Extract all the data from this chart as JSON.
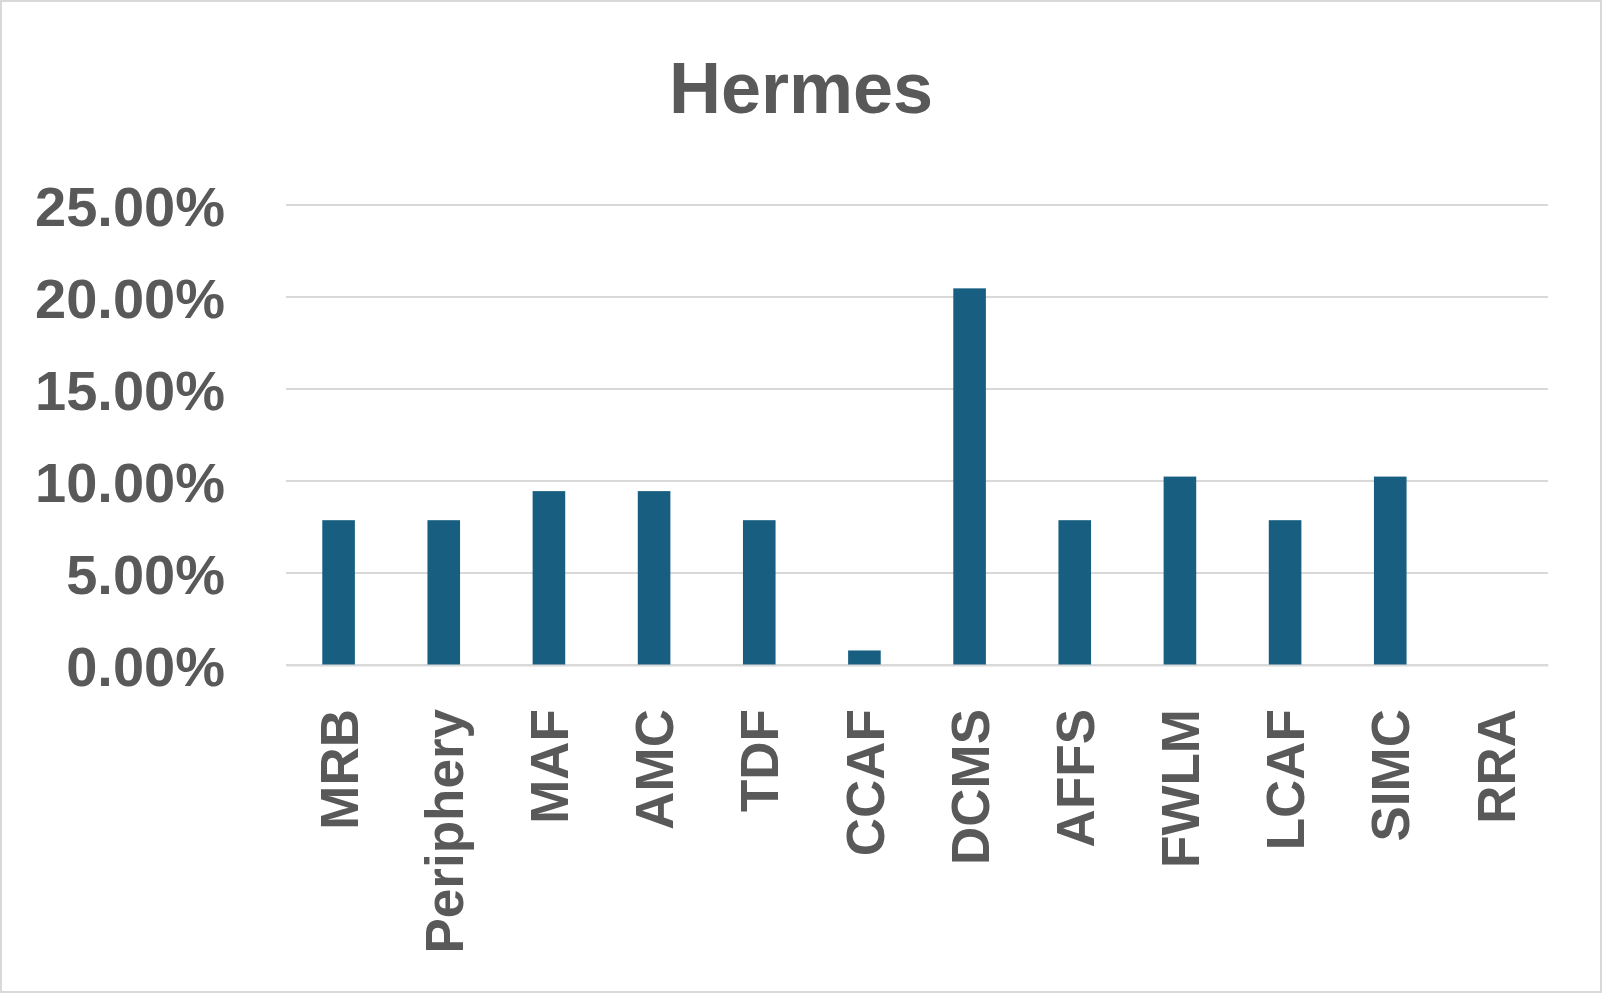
{
  "chart_data": {
    "type": "bar",
    "title": "Hermes",
    "categories": [
      "MRB",
      "Periphery",
      "MAF",
      "AMC",
      "TDF",
      "CCAF",
      "DCMS",
      "AFFS",
      "FWLM",
      "LCAF",
      "SIMC",
      "RRA"
    ],
    "values": [
      7.87,
      7.87,
      9.45,
      9.45,
      7.87,
      0.79,
      20.47,
      7.87,
      10.24,
      7.87,
      10.24,
      0
    ],
    "color": "#175e81",
    "ylim": [
      0,
      25
    ],
    "yticks": [
      {
        "value": 0,
        "label": "0.00%"
      },
      {
        "value": 5,
        "label": "5.00%"
      },
      {
        "value": 10,
        "label": "10.00%"
      },
      {
        "value": 15,
        "label": "15.00%"
      },
      {
        "value": 20,
        "label": "20.00%"
      },
      {
        "value": 25,
        "label": "25.00%"
      }
    ],
    "grid": "y"
  }
}
